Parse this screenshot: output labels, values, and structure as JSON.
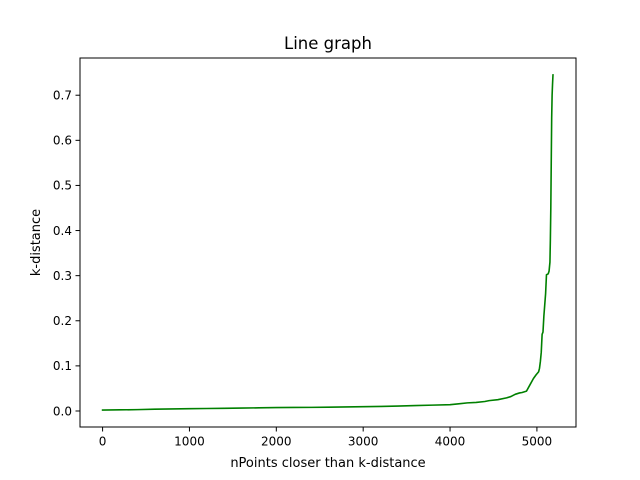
{
  "chart_data": {
    "type": "line",
    "title": "Line graph",
    "xlabel": "nPoints closer than k-distance",
    "ylabel": "k-distance",
    "xlim": [
      -260,
      5450
    ],
    "ylim": [
      -0.0355,
      0.7825
    ],
    "xticks": [
      0,
      1000,
      2000,
      3000,
      4000,
      5000
    ],
    "xtick_labels": [
      "0",
      "1000",
      "2000",
      "3000",
      "4000",
      "5000"
    ],
    "yticks": [
      0.0,
      0.1,
      0.2,
      0.3,
      0.4,
      0.5,
      0.6,
      0.7
    ],
    "ytick_labels": [
      "0.0",
      "0.1",
      "0.2",
      "0.3",
      "0.4",
      "0.5",
      "0.6",
      "0.7"
    ],
    "grid": false,
    "series": [
      {
        "color": "#008000",
        "x": [
          0,
          200,
          400,
          600,
          800,
          1000,
          1200,
          1400,
          1600,
          1800,
          2000,
          2200,
          2400,
          2600,
          2800,
          3000,
          3200,
          3400,
          3600,
          3800,
          4000,
          4100,
          4200,
          4300,
          4400,
          4450,
          4550,
          4650,
          4700,
          4750,
          4800,
          4830,
          4880,
          4920,
          4960,
          4990,
          5020,
          5030,
          5040,
          5050,
          5060,
          5070,
          5080,
          5090,
          5100,
          5110,
          5120,
          5130,
          5140,
          5150,
          5155,
          5160,
          5165,
          5170,
          5175,
          5180,
          5185
        ],
        "y": [
          0.002,
          0.0025,
          0.003,
          0.004,
          0.0045,
          0.005,
          0.0055,
          0.006,
          0.0065,
          0.007,
          0.0075,
          0.0078,
          0.008,
          0.0085,
          0.009,
          0.0095,
          0.01,
          0.011,
          0.012,
          0.013,
          0.014,
          0.016,
          0.018,
          0.019,
          0.021,
          0.023,
          0.025,
          0.029,
          0.032,
          0.037,
          0.04,
          0.041,
          0.044,
          0.058,
          0.072,
          0.08,
          0.087,
          0.095,
          0.11,
          0.13,
          0.17,
          0.175,
          0.21,
          0.235,
          0.26,
          0.302,
          0.303,
          0.304,
          0.31,
          0.33,
          0.38,
          0.45,
          0.55,
          0.65,
          0.7,
          0.725,
          0.745
        ]
      }
    ]
  }
}
